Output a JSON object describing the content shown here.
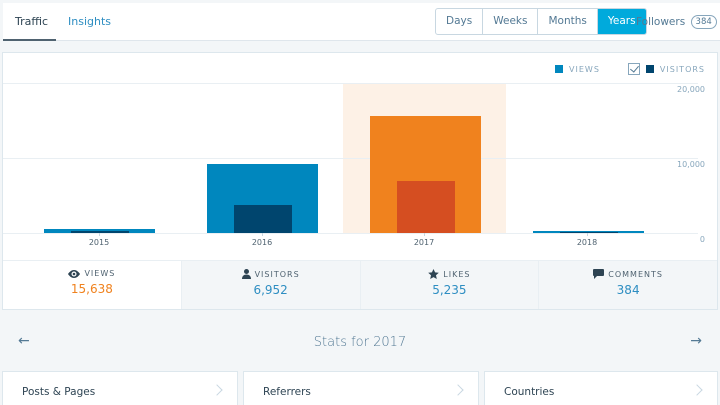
{
  "nav": {
    "tabs": [
      {
        "label": "Traffic",
        "active": true
      },
      {
        "label": "Insights",
        "active": false
      }
    ],
    "periods": [
      {
        "label": "Days",
        "active": false
      },
      {
        "label": "Weeks",
        "active": false
      },
      {
        "label": "Months",
        "active": false
      },
      {
        "label": "Years",
        "active": true
      }
    ],
    "followers_label": "Followers",
    "followers_count": "384"
  },
  "legend": {
    "views_label": "VIEWS",
    "visitors_label": "VISITORS",
    "visitors_checked": true
  },
  "colors": {
    "views": "#0087be",
    "visitors": "#00456e",
    "views_selected": "#f0821e",
    "visitors_selected": "#d54e21",
    "selected_bg": "#fdf1e6",
    "accent": "#00aadc"
  },
  "chart_data": {
    "type": "bar",
    "title": "",
    "xlabel": "",
    "ylabel": "",
    "categories": [
      "2015",
      "2016",
      "2017",
      "2018"
    ],
    "series": [
      {
        "name": "Views",
        "values": [
          500,
          9200,
          15638,
          250
        ]
      },
      {
        "name": "Visitors",
        "values": [
          300,
          3700,
          6952,
          150
        ]
      }
    ],
    "ylim": [
      0,
      20000
    ],
    "yticks": [
      "20,000",
      "10,000",
      "0"
    ],
    "grid": true,
    "legend_position": "top-right",
    "selected_category": "2017"
  },
  "stats": [
    {
      "label": "VIEWS",
      "icon": "eye-icon",
      "value": "15,638",
      "active": true
    },
    {
      "label": "VISITORS",
      "icon": "person-icon",
      "value": "6,952",
      "active": false
    },
    {
      "label": "LIKES",
      "icon": "star-icon",
      "value": "5,235",
      "active": false
    },
    {
      "label": "COMMENTS",
      "icon": "comment-icon",
      "value": "384",
      "active": false
    }
  ],
  "period": {
    "title": "Stats for 2017",
    "prev_icon": "arrow-left-icon",
    "next_icon": "arrow-right-icon",
    "prev_glyph": "←",
    "next_glyph": "→"
  },
  "modules": [
    {
      "title": "Posts & Pages"
    },
    {
      "title": "Referrers"
    },
    {
      "title": "Countries"
    }
  ]
}
